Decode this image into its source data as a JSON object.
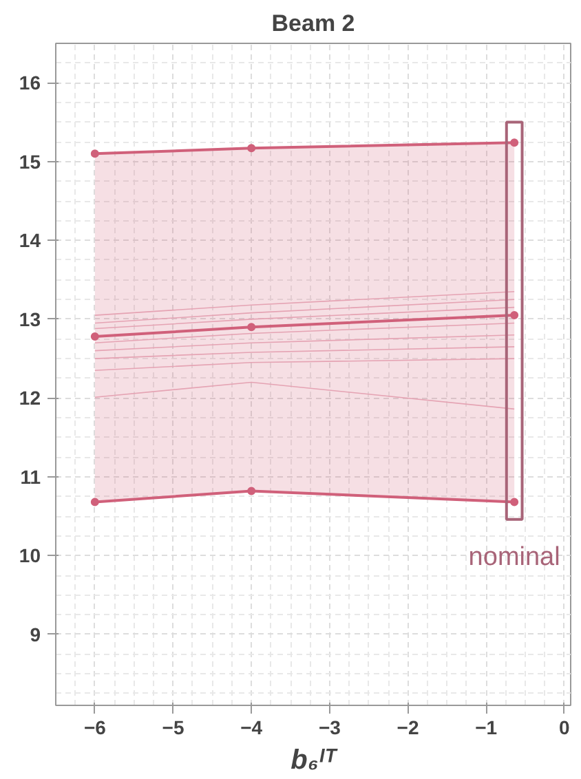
{
  "chart_data": {
    "type": "line",
    "title": "Beam 2",
    "xlabel": "b₆ᴵᵀ",
    "x": [
      -6,
      -4,
      -0.64
    ],
    "series": [
      {
        "color": "#eab4c2",
        "values": [
          13.05,
          13.18,
          13.35
        ]
      },
      {
        "color": "#eab4c2",
        "values": [
          12.95,
          13.08,
          13.25
        ]
      },
      {
        "color": "#eab4c2",
        "values": [
          12.88,
          13.0,
          13.15
        ]
      },
      {
        "color": "#eab4c2",
        "values": [
          12.7,
          12.82,
          12.95
        ]
      },
      {
        "color": "#eab4c2",
        "values": [
          12.6,
          12.7,
          12.8
        ]
      },
      {
        "color": "#eab4c2",
        "values": [
          12.5,
          12.58,
          12.65
        ]
      },
      {
        "color": "#eab4c2",
        "values": [
          12.35,
          12.45,
          12.5
        ]
      },
      {
        "color": "#eab4c2",
        "values": [
          12.01,
          12.2,
          11.86
        ]
      },
      {
        "color": "#d0607a",
        "marker": "circle",
        "values": [
          12.78,
          12.9,
          13.05
        ],
        "lower": [
          10.68,
          10.82,
          10.68
        ],
        "upper": [
          15.1,
          15.17,
          15.24
        ]
      },
      {
        "color": "#d0607a",
        "marker": "circle",
        "values": [
          15.1,
          15.17,
          15.24
        ]
      },
      {
        "color": "#d0607a",
        "marker": "circle",
        "values": [
          10.68,
          10.82,
          10.68
        ]
      }
    ],
    "annotations": [
      "nominal"
    ],
    "xlim": [
      -6.5,
      0.08
    ],
    "ylim": [
      8.1,
      16.5
    ],
    "xticks": [
      -6,
      -5,
      -4,
      -3,
      -2,
      -1,
      0
    ],
    "yticks": [
      9,
      10,
      11,
      12,
      13,
      14,
      15,
      16
    ],
    "grid": true
  }
}
